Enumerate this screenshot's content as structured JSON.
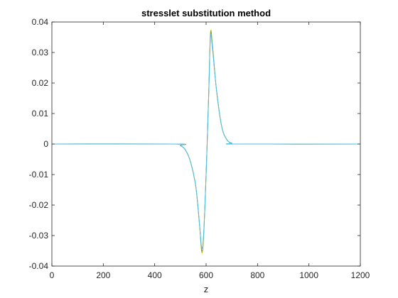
{
  "chart_data": {
    "type": "line",
    "title": "stresslet substitution method",
    "xlabel": "z",
    "ylabel": "",
    "xlim": [
      0,
      1200
    ],
    "ylim": [
      -0.04,
      0.04
    ],
    "x_ticks": [
      0,
      200,
      400,
      600,
      800,
      1000,
      1200
    ],
    "x_tick_labels": [
      "0",
      "200",
      "400",
      "600",
      "800",
      "1000",
      "1200"
    ],
    "y_ticks": [
      0.04,
      0.03,
      0.02,
      0.01,
      0,
      -0.01,
      -0.02,
      -0.03,
      -0.04
    ],
    "y_tick_labels": [
      "0.04",
      "0.03",
      "0.02",
      "0.01",
      "0",
      "-0.01",
      "-0.02",
      "-0.03",
      "-0.04"
    ],
    "grid": false,
    "box": true,
    "legend": "none",
    "series": [
      {
        "color": "#EDB120",
        "x": [
          0,
          480,
          500,
          520,
          540,
          560,
          575,
          583,
          590,
          600,
          610,
          617,
          625,
          640,
          660,
          680,
          700,
          720,
          1200
        ],
        "y": [
          0,
          0,
          -0.0005,
          -0.002,
          -0.006,
          -0.014,
          -0.027,
          -0.0355,
          -0.031,
          -0.01,
          0.016,
          0.0365,
          0.032,
          0.018,
          0.006,
          0.0015,
          0.0003,
          0,
          0
        ]
      },
      {
        "color": "#77AC30",
        "x": [
          0,
          480,
          500,
          520,
          540,
          560,
          575,
          583,
          590,
          600,
          610,
          617,
          625,
          640,
          660,
          680,
          700,
          720,
          1200
        ],
        "y": [
          0,
          0,
          -0.0005,
          -0.002,
          -0.006,
          -0.014,
          -0.027,
          -0.035,
          -0.0305,
          -0.01,
          0.016,
          0.036,
          0.032,
          0.018,
          0.006,
          0.0015,
          0.0003,
          0,
          0
        ]
      },
      {
        "color": "#4DBEEE",
        "x": [
          0,
          480,
          500,
          520,
          540,
          560,
          575,
          583,
          590,
          600,
          610,
          617,
          625,
          640,
          660,
          680,
          700,
          720,
          1200
        ],
        "y": [
          0,
          0,
          -0.0005,
          -0.002,
          -0.006,
          -0.014,
          -0.027,
          -0.034,
          -0.03,
          -0.01,
          0.016,
          0.035,
          0.031,
          0.018,
          0.006,
          0.0015,
          0.0003,
          0,
          0
        ]
      }
    ]
  }
}
